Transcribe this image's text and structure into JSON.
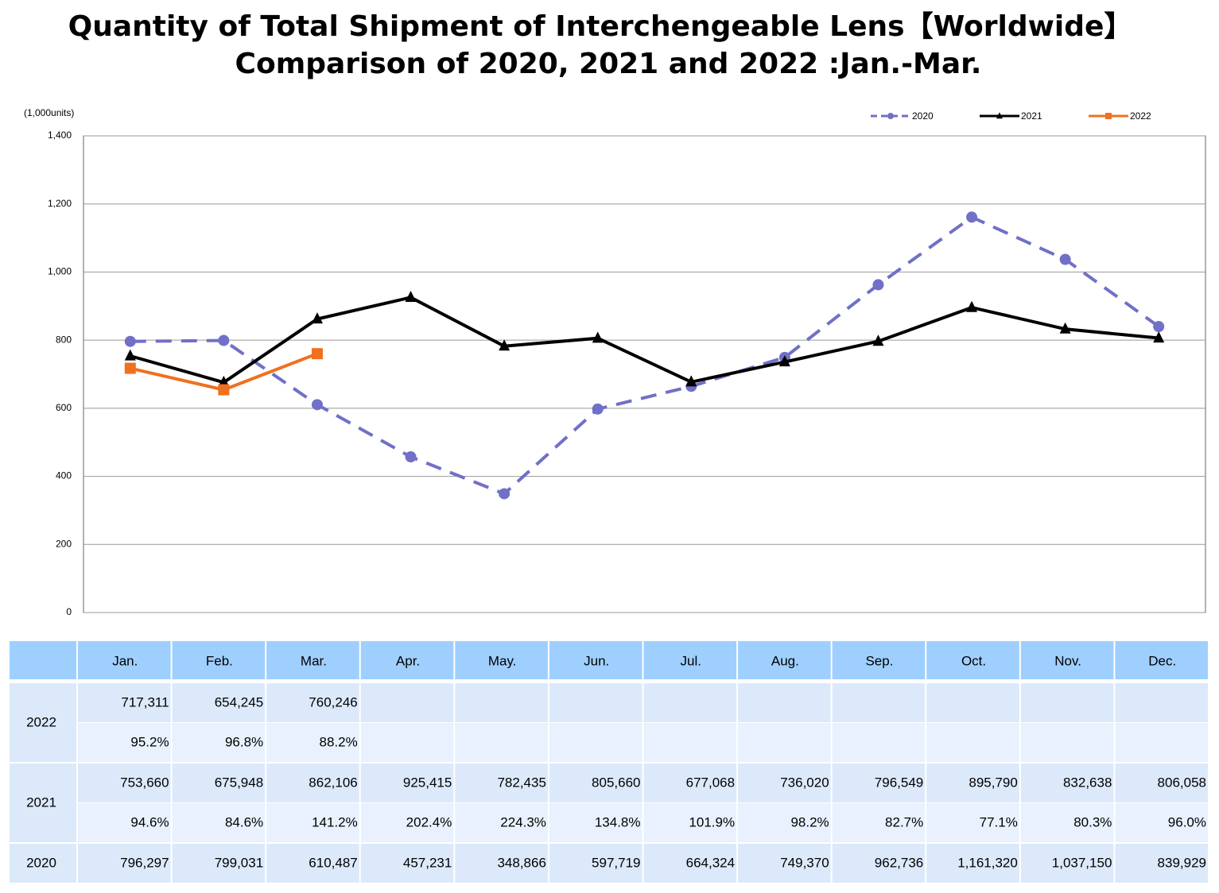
{
  "chart_data": {
    "type": "line",
    "title": "Quantity of Total Shipment of Interchengeable Lens【Worldwide】",
    "subtitle": "Comparison of 2020, 2021 and 2022 :Jan.-Mar.",
    "y_unit_label": "(1,000units)",
    "categories": [
      "Jan.",
      "Feb.",
      "Mar.",
      "Apr.",
      "May.",
      "Jun.",
      "Jul.",
      "Aug.",
      "Sep.",
      "Oct.",
      "Nov.",
      "Dec."
    ],
    "ylim": [
      0,
      1400
    ],
    "yticks": [
      0,
      200,
      400,
      600,
      800,
      {
        "value": 1000,
        "label": "1,000"
      },
      {
        "value": 1200,
        "label": "1,200"
      },
      {
        "value": 1400,
        "label": "1,400"
      }
    ],
    "grid": true,
    "legend": "top-right",
    "series": [
      {
        "name": "2020",
        "color": "#7070c8",
        "marker": "circle",
        "dashed": true,
        "values": [
          796.297,
          799.031,
          610.487,
          457.231,
          348.866,
          597.719,
          664.324,
          749.37,
          962.736,
          1161.32,
          1037.15,
          839.929
        ],
        "value_labels": [
          "796,297",
          "799,031",
          "610,487",
          "457,231",
          "348,866",
          "597,719",
          "664,324",
          "749,370",
          "962,736",
          "1,161,320",
          "1,037,150",
          "839,929"
        ]
      },
      {
        "name": "2021",
        "color": "#000000",
        "marker": "triangle",
        "dashed": false,
        "values": [
          753.66,
          675.948,
          862.106,
          925.415,
          782.435,
          805.66,
          677.068,
          736.02,
          796.549,
          895.79,
          832.638,
          806.058
        ],
        "value_labels": [
          "753,660",
          "675,948",
          "862,106",
          "925,415",
          "782,435",
          "805,660",
          "677,068",
          "736,020",
          "796,549",
          "895,790",
          "832,638",
          "806,058"
        ],
        "ratio_labels": [
          "94.6%",
          "84.6%",
          "141.2%",
          "202.4%",
          "224.3%",
          "134.8%",
          "101.9%",
          "98.2%",
          "82.7%",
          "77.1%",
          "80.3%",
          "96.0%"
        ]
      },
      {
        "name": "2022",
        "color": "#f07020",
        "marker": "square",
        "dashed": false,
        "values": [
          717.311,
          654.245,
          760.246,
          null,
          null,
          null,
          null,
          null,
          null,
          null,
          null,
          null
        ],
        "value_labels": [
          "717,311",
          "654,245",
          "760,246",
          null,
          null,
          null,
          null,
          null,
          null,
          null,
          null,
          null
        ],
        "ratio_labels": [
          "95.2%",
          "96.8%",
          "88.2%",
          null,
          null,
          null,
          null,
          null,
          null,
          null,
          null,
          null
        ]
      }
    ]
  }
}
